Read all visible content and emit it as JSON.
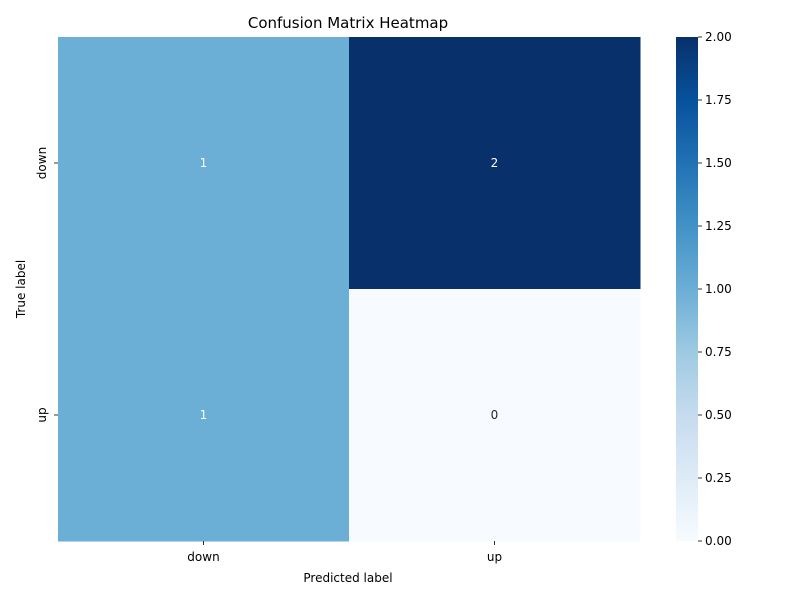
{
  "chart_data": {
    "type": "heatmap",
    "title": "Confusion Matrix Heatmap",
    "xlabel": "Predicted label",
    "ylabel": "True label",
    "x_categories": [
      "down",
      "up"
    ],
    "y_categories": [
      "down",
      "up"
    ],
    "values": [
      [
        1,
        2
      ],
      [
        1,
        0
      ]
    ],
    "annotations": true,
    "colormap": "Blues",
    "colorbar": {
      "range": [
        0,
        2
      ],
      "ticks": [
        0.0,
        0.25,
        0.5,
        0.75,
        1.0,
        1.25,
        1.5,
        1.75,
        2.0
      ],
      "tick_labels": [
        "0.00",
        "0.25",
        "0.50",
        "0.75",
        "1.00",
        "1.25",
        "1.50",
        "1.75",
        "2.00"
      ]
    },
    "grid": false
  }
}
